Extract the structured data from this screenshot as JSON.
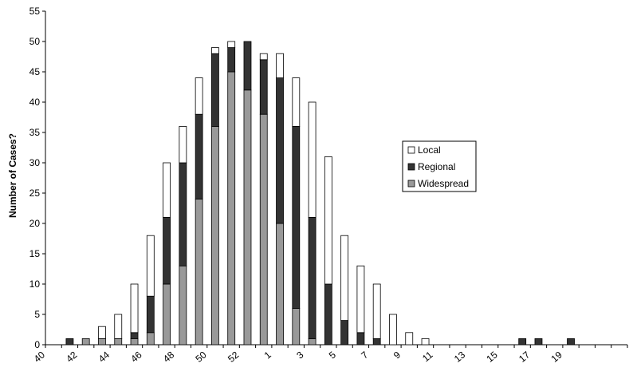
{
  "chart_data": {
    "type": "bar",
    "stacked": true,
    "title": "",
    "xlabel": "",
    "ylabel": "Number of Cases?",
    "ylim": [
      0,
      55
    ],
    "yticks": [
      0,
      5,
      10,
      15,
      20,
      25,
      30,
      35,
      40,
      45,
      50,
      55
    ],
    "grid": false,
    "legend_position": "right",
    "categories": [
      "40",
      "41",
      "42",
      "43",
      "44",
      "45",
      "46",
      "47",
      "48",
      "49",
      "50",
      "51",
      "52",
      "53",
      "1",
      "2",
      "3",
      "4",
      "5",
      "6",
      "7",
      "8",
      "9",
      "10",
      "11",
      "12",
      "13",
      "14",
      "15",
      "16",
      "17",
      "18",
      "19",
      "20",
      "21",
      "22"
    ],
    "tick_labels": [
      "40",
      "",
      "42",
      "",
      "44",
      "",
      "46",
      "",
      "48",
      "",
      "50",
      "",
      "52",
      "",
      "1",
      "",
      "3",
      "",
      "5",
      "",
      "7",
      "",
      "9",
      "",
      "11",
      "",
      "13",
      "",
      "15",
      "",
      "17",
      "",
      "19",
      "",
      "",
      ""
    ],
    "series": [
      {
        "name": "Widespread",
        "color": "#999999",
        "values": [
          0,
          0,
          1,
          1,
          1,
          1,
          2,
          10,
          13,
          24,
          36,
          45,
          42,
          38,
          20,
          6,
          1,
          0,
          0,
          0,
          0,
          0,
          0,
          0,
          0,
          0,
          0,
          0,
          0,
          0,
          0,
          0,
          0,
          0,
          0,
          0
        ]
      },
      {
        "name": "Regional",
        "color": "#333333",
        "values": [
          0,
          1,
          0,
          0,
          0,
          1,
          6,
          11,
          17,
          14,
          12,
          4,
          8,
          9,
          24,
          30,
          20,
          10,
          4,
          2,
          1,
          0,
          0,
          0,
          0,
          0,
          0,
          0,
          0,
          1,
          1,
          0,
          1,
          0,
          0,
          0
        ]
      },
      {
        "name": "Local",
        "color": "#ffffff",
        "values": [
          0,
          0,
          0,
          2,
          4,
          8,
          10,
          9,
          6,
          6,
          1,
          1,
          0,
          1,
          4,
          8,
          19,
          21,
          14,
          11,
          9,
          5,
          2,
          1,
          0,
          0,
          0,
          0,
          0,
          0,
          0,
          0,
          0,
          0,
          0,
          0
        ]
      }
    ],
    "legend": [
      "Local",
      "Regional",
      "Widespread"
    ]
  }
}
